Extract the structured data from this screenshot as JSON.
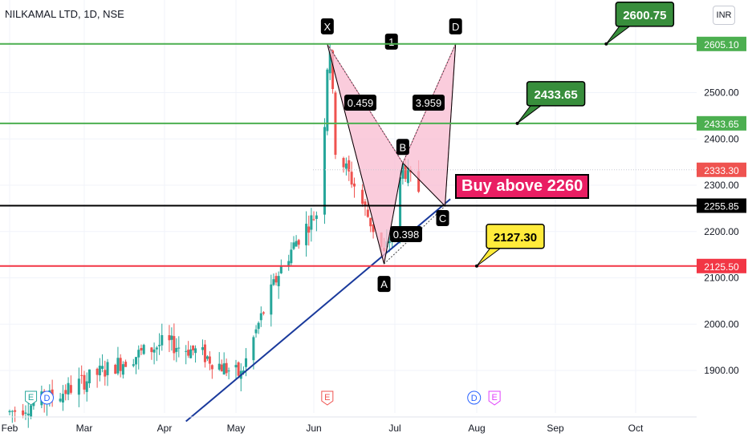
{
  "title": "NILKAMAL LTD, 1D, NSE",
  "currency": "INR",
  "colors": {
    "up": "#26a69a",
    "down": "#ef5350",
    "green_line": "#4caf50",
    "red_line": "#f23645",
    "black_line": "#000000",
    "trend": "#1a3a9c",
    "pattern_fill": "#f8bbd0",
    "pattern_edge": "#e57399"
  },
  "callout_text": "Buy above 2260",
  "chart_data": {
    "type": "candlestick",
    "ylim": [
      1820,
      2680
    ],
    "xlim": [
      "2023-02-01",
      "2023-10-31"
    ],
    "x_ticks": [
      "Feb",
      "Mar",
      "Apr",
      "May",
      "Jun",
      "Jul",
      "Aug",
      "Sep",
      "Oct"
    ],
    "y_ticks": [
      "1900.00",
      "2000.00",
      "2100.00",
      "2200.00",
      "2300.00",
      "2400.00",
      "2500.00"
    ],
    "horizontal_levels": [
      {
        "value": 2605.1,
        "label": "2605.10",
        "color": "green"
      },
      {
        "value": 2433.65,
        "label": "2433.65",
        "color": "green"
      },
      {
        "value": 2333.3,
        "label": "2333.30",
        "color": "gray"
      },
      {
        "value": 2255.85,
        "label": "2255.85",
        "color": "black"
      },
      {
        "value": 2125.5,
        "label": "2125.50",
        "color": "red"
      }
    ],
    "callouts": [
      {
        "text": "2600.75",
        "color": "green",
        "point": [
          "2023-09-20",
          2605.1
        ]
      },
      {
        "text": "2433.65",
        "color": "green",
        "point": [
          "2023-08-17",
          2433.65
        ]
      },
      {
        "text": "2127.30",
        "color": "yellow",
        "point": [
          "2023-08-01",
          2125.5
        ]
      }
    ],
    "harmonic_pattern": {
      "points": [
        {
          "label": "X",
          "date": "2023-06-06",
          "value": 2605
        },
        {
          "label": "A",
          "date": "2023-06-27",
          "value": 2130
        },
        {
          "label": "B",
          "date": "2023-07-04",
          "value": 2348
        },
        {
          "label": "C",
          "date": "2023-07-20",
          "value": 2255
        },
        {
          "label": "D",
          "date": "2023-07-24",
          "value": 2605
        }
      ],
      "ratios": [
        "0.459",
        "3.959",
        "0.398"
      ],
      "marker_1": "1"
    },
    "trendline": {
      "start": [
        "2023-04-10",
        1790
      ],
      "end": [
        "2023-07-22",
        2270
      ]
    },
    "event_markers": [
      {
        "label": "E",
        "date": "2023-02-09",
        "style": "earnings-up"
      },
      {
        "label": "D",
        "date": "2023-02-15",
        "style": "dividend"
      },
      {
        "label": "E",
        "date": "2023-06-06",
        "style": "earnings-down"
      },
      {
        "label": "D",
        "date": "2023-07-31",
        "style": "dividend"
      },
      {
        "label": "E",
        "date": "2023-08-08",
        "style": "earnings-future"
      }
    ]
  }
}
